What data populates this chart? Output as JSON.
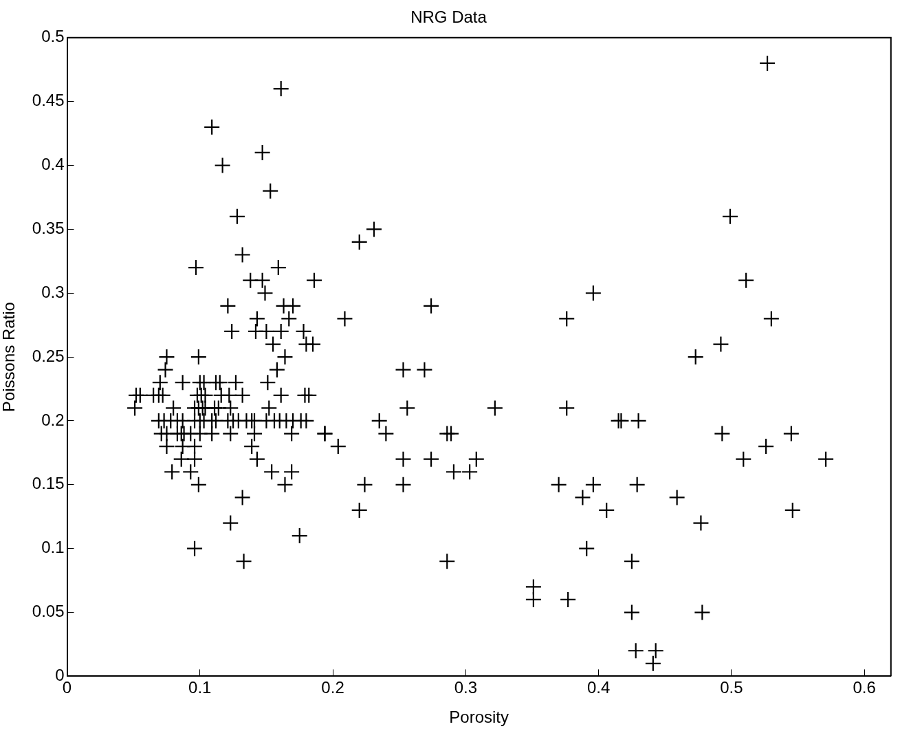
{
  "chart_data": {
    "type": "scatter",
    "title": "NRG Data",
    "xlabel": "Porosity",
    "ylabel": "Poissons Ratio",
    "marker": "cross",
    "legend": false,
    "xlim": [
      0,
      0.62
    ],
    "xticks": [
      0,
      0.1,
      0.2,
      0.3,
      0.4,
      0.5,
      0.6
    ],
    "ylim": [
      0,
      0.5
    ],
    "yticks": [
      0,
      0.05,
      0.1,
      0.15,
      0.2,
      0.25,
      0.3,
      0.35,
      0.4,
      0.45,
      0.5
    ],
    "series": [
      {
        "color": "#000000",
        "x": [
          0.051,
          0.052,
          0.055,
          0.065,
          0.069,
          0.072,
          0.07,
          0.074,
          0.075,
          0.099,
          0.087,
          0.1,
          0.103,
          0.112,
          0.115,
          0.127,
          0.151,
          0.098,
          0.101,
          0.104,
          0.116,
          0.122,
          0.132,
          0.161,
          0.179,
          0.182,
          0.08,
          0.096,
          0.099,
          0.102,
          0.104,
          0.111,
          0.114,
          0.123,
          0.152,
          0.069,
          0.073,
          0.078,
          0.083,
          0.087,
          0.096,
          0.1,
          0.103,
          0.109,
          0.112,
          0.121,
          0.125,
          0.129,
          0.135,
          0.139,
          0.141,
          0.15,
          0.156,
          0.16,
          0.165,
          0.17,
          0.176,
          0.18,
          0.071,
          0.075,
          0.083,
          0.086,
          0.088,
          0.093,
          0.1,
          0.109,
          0.123,
          0.141,
          0.169,
          0.194,
          0.075,
          0.087,
          0.096,
          0.139,
          0.086,
          0.096,
          0.143,
          0.079,
          0.093,
          0.154,
          0.169,
          0.099,
          0.164,
          0.132,
          0.123,
          0.175,
          0.096,
          0.133,
          0.161,
          0.109,
          0.147,
          0.117,
          0.153,
          0.128,
          0.132,
          0.097,
          0.159,
          0.138,
          0.147,
          0.186,
          0.149,
          0.121,
          0.163,
          0.17,
          0.143,
          0.167,
          0.124,
          0.142,
          0.15,
          0.161,
          0.178,
          0.155,
          0.18,
          0.185,
          0.164,
          0.158,
          0.209,
          0.22,
          0.231,
          0.194,
          0.204,
          0.22,
          0.224,
          0.235,
          0.24,
          0.253,
          0.256,
          0.253,
          0.253,
          0.269,
          0.274,
          0.274,
          0.286,
          0.289,
          0.291,
          0.303,
          0.308,
          0.286,
          0.322,
          0.37,
          0.376,
          0.376,
          0.396,
          0.396,
          0.388,
          0.391,
          0.406,
          0.415,
          0.417,
          0.43,
          0.351,
          0.351,
          0.377,
          0.425,
          0.425,
          0.428,
          0.443,
          0.441,
          0.429,
          0.459,
          0.477,
          0.478,
          0.473,
          0.492,
          0.493,
          0.499,
          0.511,
          0.509,
          0.527,
          0.53,
          0.526,
          0.545,
          0.546,
          0.571
        ],
        "values": [
          0.21,
          0.22,
          0.22,
          0.22,
          0.22,
          0.22,
          0.23,
          0.24,
          0.25,
          0.25,
          0.23,
          0.23,
          0.23,
          0.23,
          0.23,
          0.23,
          0.23,
          0.22,
          0.22,
          0.22,
          0.22,
          0.22,
          0.22,
          0.22,
          0.22,
          0.22,
          0.21,
          0.21,
          0.21,
          0.21,
          0.21,
          0.21,
          0.21,
          0.21,
          0.21,
          0.2,
          0.2,
          0.2,
          0.2,
          0.2,
          0.2,
          0.2,
          0.2,
          0.2,
          0.2,
          0.2,
          0.2,
          0.2,
          0.2,
          0.2,
          0.2,
          0.2,
          0.2,
          0.2,
          0.2,
          0.2,
          0.2,
          0.2,
          0.19,
          0.19,
          0.19,
          0.19,
          0.19,
          0.19,
          0.19,
          0.19,
          0.19,
          0.19,
          0.19,
          0.19,
          0.18,
          0.18,
          0.18,
          0.18,
          0.17,
          0.17,
          0.17,
          0.16,
          0.16,
          0.16,
          0.16,
          0.15,
          0.15,
          0.14,
          0.12,
          0.11,
          0.1,
          0.09,
          0.46,
          0.43,
          0.41,
          0.4,
          0.38,
          0.36,
          0.33,
          0.32,
          0.32,
          0.31,
          0.31,
          0.31,
          0.3,
          0.29,
          0.29,
          0.29,
          0.28,
          0.28,
          0.27,
          0.27,
          0.27,
          0.27,
          0.27,
          0.26,
          0.26,
          0.26,
          0.25,
          0.24,
          0.28,
          0.34,
          0.35,
          0.19,
          0.18,
          0.13,
          0.15,
          0.2,
          0.19,
          0.24,
          0.21,
          0.17,
          0.15,
          0.24,
          0.29,
          0.17,
          0.19,
          0.19,
          0.16,
          0.16,
          0.17,
          0.09,
          0.21,
          0.15,
          0.28,
          0.21,
          0.3,
          0.15,
          0.14,
          0.1,
          0.13,
          0.2,
          0.2,
          0.2,
          0.07,
          0.06,
          0.06,
          0.09,
          0.05,
          0.02,
          0.02,
          0.01,
          0.15,
          0.14,
          0.12,
          0.05,
          0.25,
          0.26,
          0.19,
          0.36,
          0.31,
          0.17,
          0.48,
          0.28,
          0.18,
          0.19,
          0.13,
          0.17
        ]
      }
    ]
  }
}
